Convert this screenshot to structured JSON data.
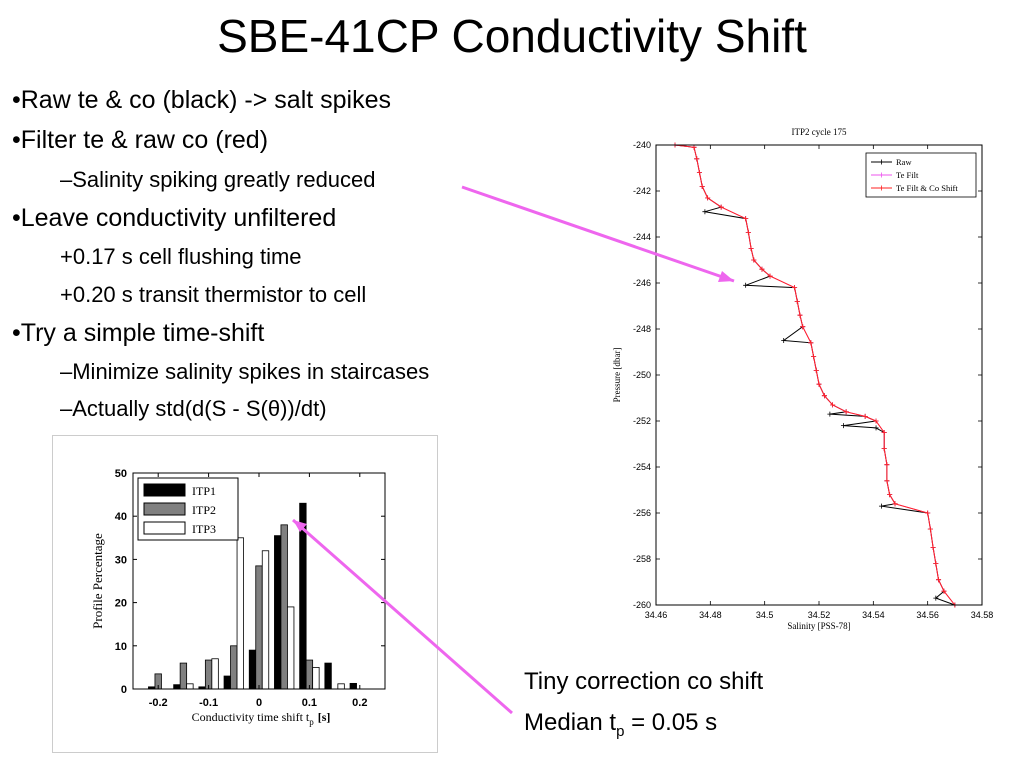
{
  "slide": {
    "title": "SBE-41CP Conductivity Shift",
    "bullets": [
      {
        "level": 1,
        "text": "•Raw te & co (black) -> salt spikes"
      },
      {
        "level": 1,
        "text": "•Filter te & raw co (red)"
      },
      {
        "level": 2,
        "text": "–Salinity spiking greatly reduced"
      },
      {
        "level": 1,
        "text": "•Leave conductivity unfiltered"
      },
      {
        "level": 2,
        "text": "+0.17 s cell flushing time"
      },
      {
        "level": 2,
        "text": "+0.20 s transit thermistor to cell"
      },
      {
        "level": 1,
        "text": "•Try a simple time-shift"
      },
      {
        "level": 2,
        "text": "–Minimize salinity spikes in staircases"
      },
      {
        "level": 2,
        "text": "–Actually std(d(S - S(θ))/dt)"
      }
    ],
    "caption_line1": "Tiny correction co shift",
    "caption_line2_prefix": "Median t",
    "caption_line2_sub": "p",
    "caption_line2_suffix": " = 0.05 s",
    "arrow_color": "#ee66ee"
  },
  "chart_data": [
    {
      "type": "bar",
      "title": "",
      "xlabel": "Conductivity time shift t",
      "xlabel_sub": "p",
      "xlabel_unit": "[s]",
      "ylabel": "Profile Percentage",
      "xlim": [
        -0.25,
        0.25
      ],
      "ylim": [
        0,
        50
      ],
      "xticks": [
        -0.2,
        -0.1,
        0,
        0.1,
        0.2
      ],
      "xtick_labels": [
        "-0.2",
        "-0.1",
        "0",
        "0.1",
        "0.2"
      ],
      "yticks": [
        0,
        10,
        20,
        30,
        40,
        50
      ],
      "x": [
        -0.2,
        -0.15,
        -0.1,
        -0.05,
        0,
        0.05,
        0.1,
        0.15,
        0.2
      ],
      "series": [
        {
          "name": "ITP1",
          "color": "#000000",
          "values": [
            0.5,
            1,
            0.5,
            3,
            9,
            35.5,
            43,
            6,
            1.3
          ]
        },
        {
          "name": "ITP2",
          "color": "#808080",
          "values": [
            3.5,
            6,
            6.7,
            10,
            28.5,
            38,
            6.7,
            0,
            0
          ]
        },
        {
          "name": "ITP3",
          "color": "#ffffff",
          "values": [
            0,
            1.2,
            7,
            35,
            32,
            19,
            5,
            1.2,
            0
          ]
        }
      ],
      "legend": "top-left"
    },
    {
      "type": "line",
      "title": "ITP2 cycle 175",
      "xlabel": "Salinity [PSS-78]",
      "ylabel": "Pressure [dbar]",
      "xlim": [
        34.46,
        34.58
      ],
      "ylim": [
        -260,
        -240
      ],
      "xticks": [
        34.46,
        34.48,
        34.5,
        34.52,
        34.54,
        34.56,
        34.58
      ],
      "xtick_labels": [
        "34.46",
        "34.48",
        "34.5",
        "34.52",
        "34.54",
        "34.56",
        "34.58"
      ],
      "yticks": [
        -240,
        -242,
        -244,
        -246,
        -248,
        -250,
        -252,
        -254,
        -256,
        -258,
        -260
      ],
      "legend": "top-right",
      "series": [
        {
          "name": "Raw",
          "color": "#000000",
          "points": [
            [
              34.467,
              -240
            ],
            [
              34.474,
              -240.1
            ],
            [
              34.475,
              -240.6
            ],
            [
              34.476,
              -241.2
            ],
            [
              34.477,
              -241.8
            ],
            [
              34.479,
              -242.3
            ],
            [
              34.484,
              -242.7
            ],
            [
              34.478,
              -242.9
            ],
            [
              34.493,
              -243.2
            ],
            [
              34.494,
              -243.8
            ],
            [
              34.495,
              -244.5
            ],
            [
              34.496,
              -245
            ],
            [
              34.499,
              -245.4
            ],
            [
              34.502,
              -245.7
            ],
            [
              34.493,
              -246.1
            ],
            [
              34.511,
              -246.2
            ],
            [
              34.512,
              -246.8
            ],
            [
              34.513,
              -247.4
            ],
            [
              34.514,
              -247.9
            ],
            [
              34.507,
              -248.5
            ],
            [
              34.517,
              -248.6
            ],
            [
              34.518,
              -249.2
            ],
            [
              34.519,
              -249.8
            ],
            [
              34.52,
              -250.4
            ],
            [
              34.522,
              -250.9
            ],
            [
              34.525,
              -251.3
            ],
            [
              34.53,
              -251.6
            ],
            [
              34.524,
              -251.7
            ],
            [
              34.537,
              -251.8
            ],
            [
              34.541,
              -252
            ],
            [
              34.529,
              -252.2
            ],
            [
              34.541,
              -252.3
            ],
            [
              34.544,
              -252.5
            ],
            [
              34.544,
              -253.2
            ],
            [
              34.545,
              -253.9
            ],
            [
              34.545,
              -254.6
            ],
            [
              34.546,
              -255.2
            ],
            [
              34.548,
              -255.6
            ],
            [
              34.543,
              -255.7
            ],
            [
              34.56,
              -256
            ],
            [
              34.561,
              -256.7
            ],
            [
              34.562,
              -257.5
            ],
            [
              34.563,
              -258.2
            ],
            [
              34.564,
              -258.9
            ],
            [
              34.566,
              -259.4
            ],
            [
              34.563,
              -259.7
            ],
            [
              34.57,
              -260
            ]
          ]
        },
        {
          "name": "Te Filt",
          "color": "#ee55ee",
          "points": [
            [
              34.467,
              -240
            ],
            [
              34.474,
              -240.1
            ],
            [
              34.475,
              -240.6
            ],
            [
              34.476,
              -241.2
            ],
            [
              34.477,
              -241.8
            ],
            [
              34.479,
              -242.3
            ],
            [
              34.484,
              -242.7
            ],
            [
              34.493,
              -243.2
            ],
            [
              34.494,
              -243.8
            ],
            [
              34.495,
              -244.5
            ],
            [
              34.496,
              -245
            ],
            [
              34.499,
              -245.4
            ],
            [
              34.502,
              -245.7
            ],
            [
              34.511,
              -246.2
            ],
            [
              34.512,
              -246.8
            ],
            [
              34.513,
              -247.4
            ],
            [
              34.514,
              -247.9
            ],
            [
              34.517,
              -248.6
            ],
            [
              34.518,
              -249.2
            ],
            [
              34.519,
              -249.8
            ],
            [
              34.52,
              -250.4
            ],
            [
              34.522,
              -250.9
            ],
            [
              34.525,
              -251.3
            ],
            [
              34.53,
              -251.6
            ],
            [
              34.537,
              -251.8
            ],
            [
              34.541,
              -252
            ],
            [
              34.544,
              -252.5
            ],
            [
              34.544,
              -253.2
            ],
            [
              34.545,
              -253.9
            ],
            [
              34.545,
              -254.6
            ],
            [
              34.546,
              -255.2
            ],
            [
              34.548,
              -255.6
            ],
            [
              34.56,
              -256
            ],
            [
              34.561,
              -256.7
            ],
            [
              34.562,
              -257.5
            ],
            [
              34.563,
              -258.2
            ],
            [
              34.564,
              -258.9
            ],
            [
              34.566,
              -259.4
            ],
            [
              34.57,
              -260
            ]
          ]
        },
        {
          "name": "Te Filt & Co Shift",
          "color": "#ff2222",
          "points": [
            [
              34.467,
              -240
            ],
            [
              34.474,
              -240.1
            ],
            [
              34.475,
              -240.6
            ],
            [
              34.476,
              -241.2
            ],
            [
              34.477,
              -241.8
            ],
            [
              34.479,
              -242.3
            ],
            [
              34.484,
              -242.7
            ],
            [
              34.493,
              -243.2
            ],
            [
              34.494,
              -243.8
            ],
            [
              34.495,
              -244.5
            ],
            [
              34.496,
              -245
            ],
            [
              34.499,
              -245.4
            ],
            [
              34.502,
              -245.7
            ],
            [
              34.511,
              -246.2
            ],
            [
              34.512,
              -246.8
            ],
            [
              34.513,
              -247.4
            ],
            [
              34.514,
              -247.9
            ],
            [
              34.517,
              -248.6
            ],
            [
              34.518,
              -249.2
            ],
            [
              34.519,
              -249.8
            ],
            [
              34.52,
              -250.4
            ],
            [
              34.522,
              -250.9
            ],
            [
              34.525,
              -251.3
            ],
            [
              34.53,
              -251.6
            ],
            [
              34.537,
              -251.8
            ],
            [
              34.541,
              -252
            ],
            [
              34.544,
              -252.5
            ],
            [
              34.544,
              -253.2
            ],
            [
              34.545,
              -253.9
            ],
            [
              34.545,
              -254.6
            ],
            [
              34.546,
              -255.2
            ],
            [
              34.548,
              -255.6
            ],
            [
              34.56,
              -256
            ],
            [
              34.561,
              -256.7
            ],
            [
              34.562,
              -257.5
            ],
            [
              34.563,
              -258.2
            ],
            [
              34.564,
              -258.9
            ],
            [
              34.566,
              -259.4
            ],
            [
              34.57,
              -260
            ]
          ]
        }
      ]
    }
  ]
}
